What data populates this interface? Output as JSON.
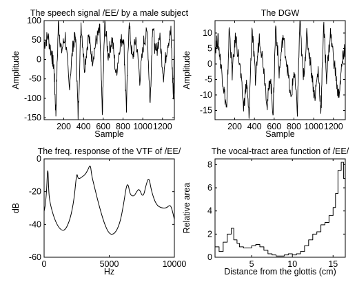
{
  "chart_data": [
    {
      "type": "line",
      "title": "The speech signal /EE/ by a male subject",
      "xlabel": "Sample",
      "ylabel": "Amplitude",
      "xlim": [
        1,
        1320
      ],
      "ylim": [
        -155,
        100
      ],
      "xticks": [
        200,
        400,
        600,
        800,
        1000,
        1200
      ],
      "yticks": [
        100,
        50,
        0,
        -50,
        -100,
        -150
      ],
      "x": [
        1,
        40,
        80,
        100,
        120,
        145,
        175,
        215,
        255,
        295,
        320,
        345,
        375,
        410,
        450,
        490,
        530,
        565,
        590,
        615,
        650,
        690,
        730,
        770,
        805,
        835,
        860,
        895,
        930,
        970,
        1010,
        1045,
        1075,
        1100,
        1130,
        1170,
        1210,
        1250,
        1285,
        1310,
        1320
      ],
      "values": [
        40,
        60,
        10,
        -20,
        -140,
        95,
        20,
        60,
        -70,
        40,
        60,
        -145,
        95,
        -20,
        60,
        0,
        50,
        75,
        -140,
        95,
        10,
        55,
        -40,
        40,
        60,
        -125,
        95,
        0,
        55,
        -50,
        45,
        70,
        -115,
        95,
        10,
        60,
        -40,
        40,
        70,
        -100,
        45
      ]
    },
    {
      "type": "line",
      "title": "The DGW",
      "xlabel": "Sample",
      "ylabel": "Amplitude",
      "xlim": [
        1,
        1320
      ],
      "ylim": [
        -18,
        14
      ],
      "xticks": [
        200,
        400,
        600,
        800,
        1000,
        1200
      ],
      "yticks": [
        10,
        5,
        0,
        -5,
        -10,
        -15
      ],
      "x": [
        1,
        30,
        60,
        90,
        120,
        145,
        175,
        210,
        250,
        290,
        320,
        345,
        375,
        410,
        450,
        490,
        530,
        560,
        590,
        615,
        650,
        690,
        730,
        770,
        800,
        835,
        860,
        895,
        930,
        970,
        1010,
        1045,
        1075,
        1100,
        1130,
        1170,
        1210,
        1250,
        1285,
        1310,
        1320
      ],
      "values": [
        5,
        8,
        0,
        -8,
        -15,
        12,
        -3,
        9,
        0,
        -14,
        -6,
        -17,
        12,
        -5,
        9,
        0,
        -13,
        -4,
        -16,
        13,
        -3,
        9,
        0,
        -12,
        -2,
        -15,
        14,
        -5,
        9,
        0,
        -11,
        -2,
        -15,
        13,
        -4,
        10,
        0,
        -11,
        -1,
        5,
        3
      ]
    },
    {
      "type": "line",
      "title": "The freq. response of the VTF of /EE/",
      "xlabel": "Hz",
      "ylabel": "dB",
      "xlim": [
        0,
        10000
      ],
      "ylim": [
        -60,
        0
      ],
      "xticks": [
        0,
        5000,
        10000
      ],
      "yticks": [
        0,
        -20,
        -40,
        -60
      ],
      "x": [
        0,
        150,
        280,
        350,
        450,
        800,
        1200,
        1600,
        2000,
        2300,
        2500,
        2600,
        2750,
        2900,
        3100,
        3350,
        3550,
        3650,
        3800,
        4200,
        4600,
        5000,
        5400,
        5800,
        6100,
        6300,
        6450,
        6600,
        6900,
        7100,
        7300,
        7600,
        7850,
        8050,
        8250,
        8600,
        9000,
        9400,
        9650,
        9800,
        10000
      ],
      "values": [
        -32,
        -27,
        -2,
        -20,
        -27,
        -37,
        -43,
        -44,
        -37,
        -25,
        -8,
        -12,
        -12,
        -11,
        -10,
        -7,
        -3,
        -10,
        -15,
        -28,
        -39,
        -46,
        -46,
        -40,
        -28,
        -17,
        -15,
        -22,
        -23,
        -20,
        -18,
        -24,
        -15,
        -11,
        -20,
        -28,
        -30,
        -30,
        -28,
        -30,
        -37
      ]
    },
    {
      "type": "line",
      "title": "The vocal-tract area function of /EE/",
      "xlabel": "Distance from the glottis (cm)",
      "ylabel": "Relative area",
      "xlim": [
        0.5,
        16.5
      ],
      "ylim": [
        0,
        8.5
      ],
      "xticks": [
        5,
        10,
        15
      ],
      "yticks": [
        0,
        2,
        4,
        6,
        8
      ],
      "x": [
        0.5,
        1,
        1.5,
        2,
        2.5,
        2.8,
        3.2,
        3.5,
        4,
        4.5,
        5,
        5.5,
        6,
        6.5,
        7,
        7.5,
        8,
        8.5,
        9,
        9.5,
        10,
        10.5,
        11,
        11.5,
        12,
        12.5,
        13,
        13.5,
        14,
        14.5,
        15,
        15.3,
        15.6,
        16,
        16.3
      ],
      "values": [
        0.9,
        0.5,
        1.3,
        2.0,
        2.5,
        1.5,
        1.2,
        0.9,
        0.8,
        0.8,
        1.0,
        1.1,
        0.9,
        0.6,
        0.3,
        0.2,
        0.1,
        0.1,
        0.2,
        0.3,
        0.2,
        0.3,
        0.5,
        1.0,
        1.5,
        2.0,
        2.2,
        2.8,
        3.0,
        3.6,
        4.3,
        5.5,
        7.5,
        8.2,
        6.8
      ]
    }
  ]
}
